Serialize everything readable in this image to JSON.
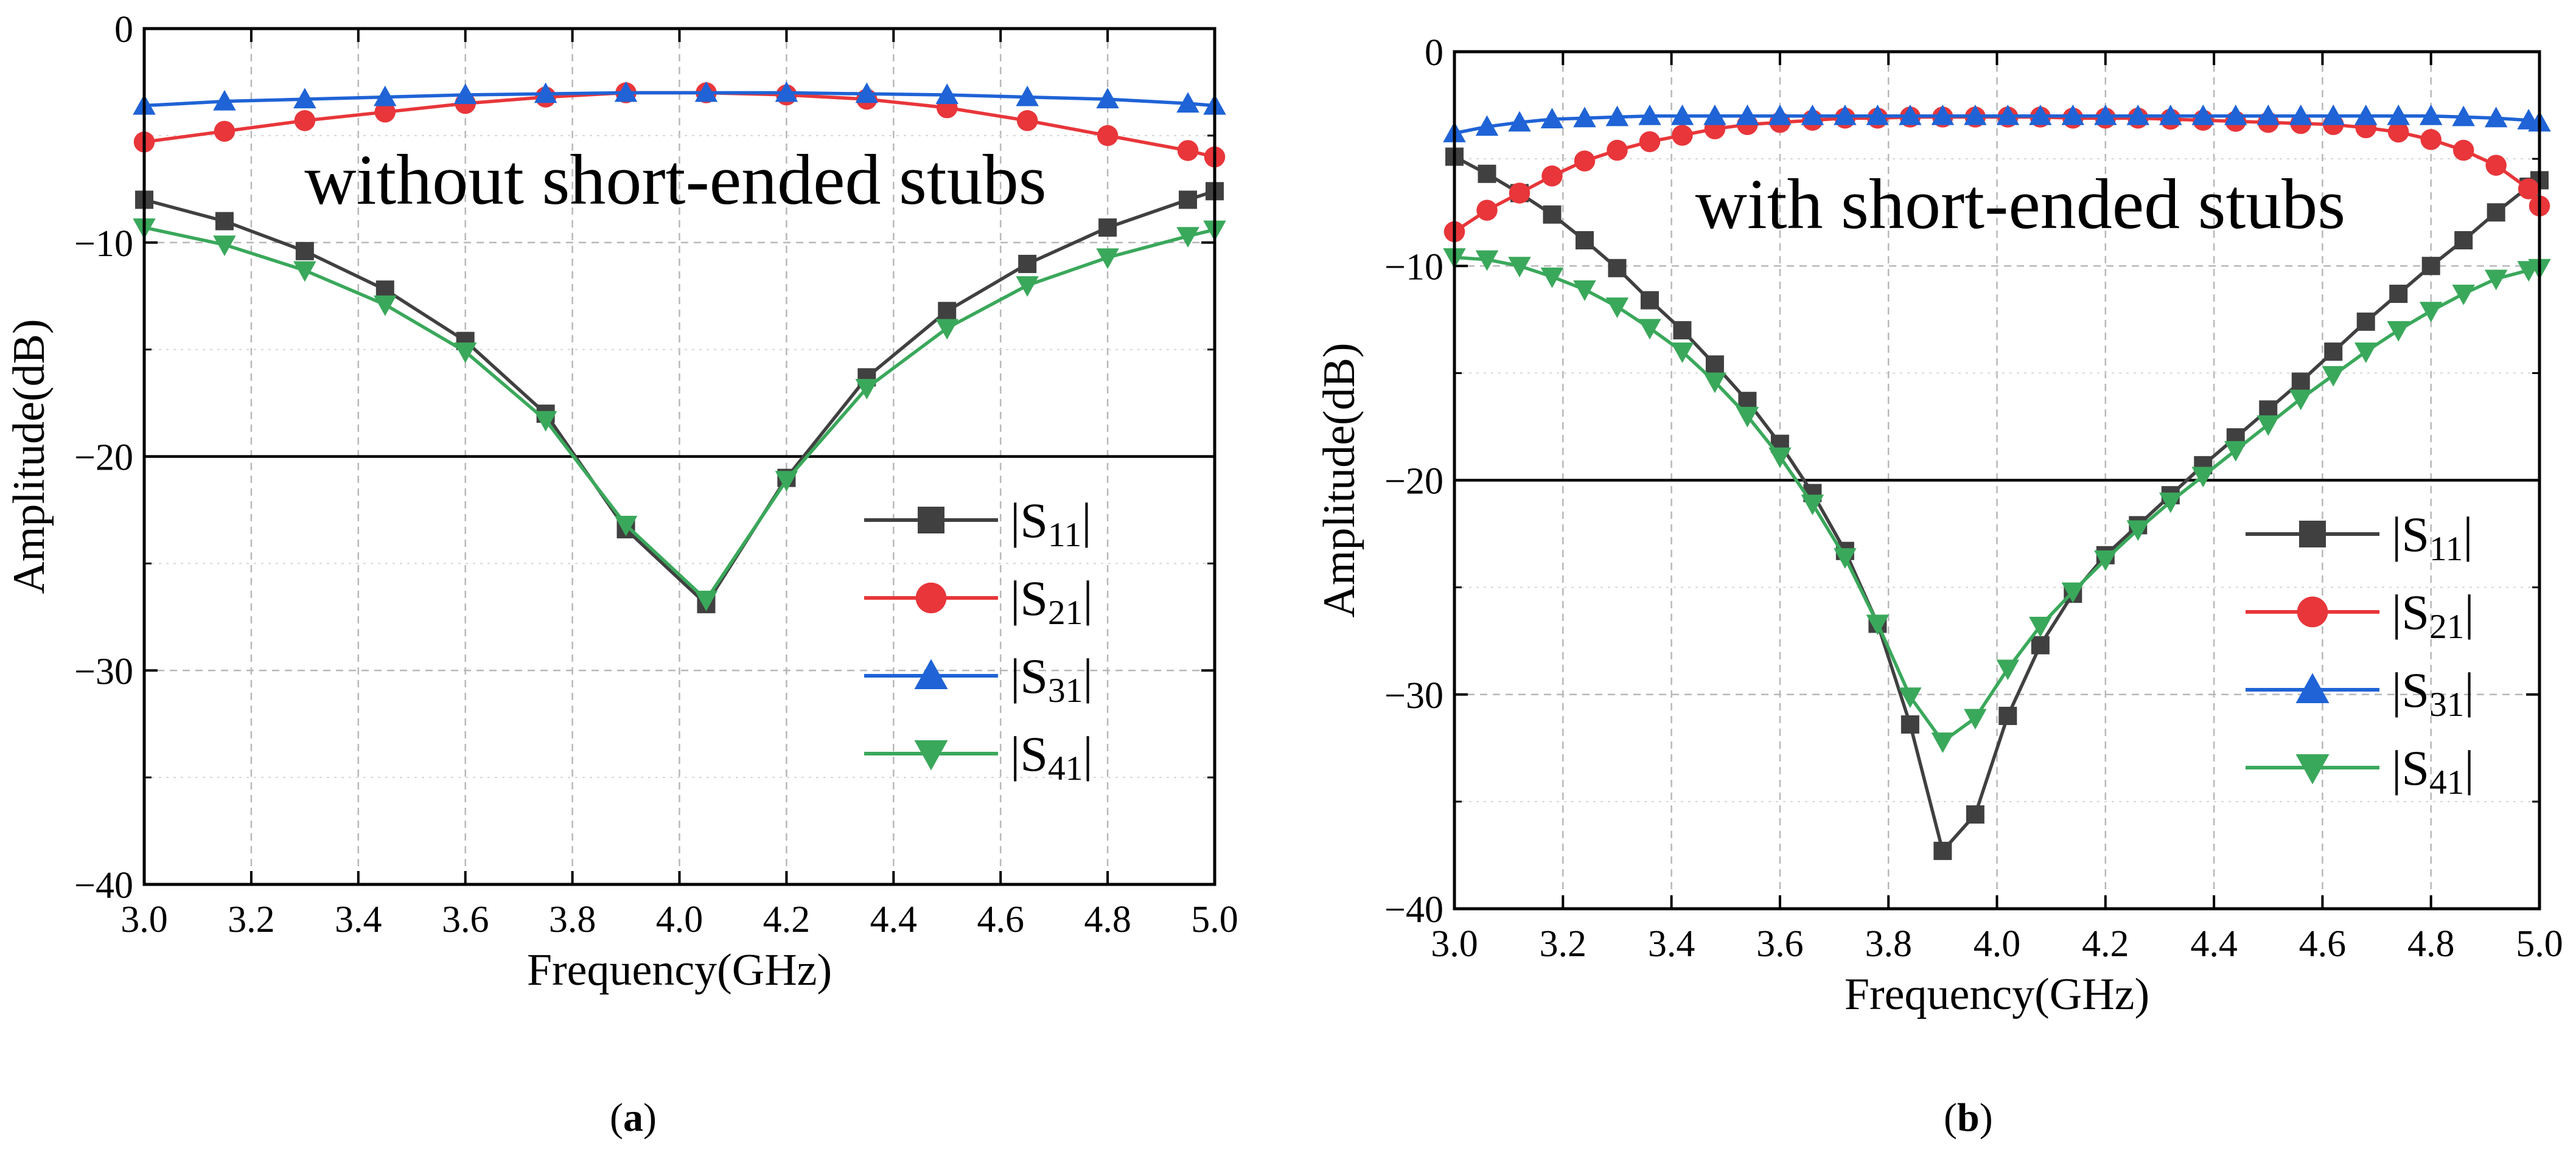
{
  "chart_data": [
    {
      "type": "line",
      "panel_label": "a",
      "annotation": "without short-ended stubs",
      "xlabel": "Frequency(GHz)",
      "ylabel": "Amplitude(dB)",
      "xlim": [
        3.0,
        5.0
      ],
      "ylim": [
        -40,
        0
      ],
      "xticks": [
        "3.0",
        "3.2",
        "3.4",
        "3.6",
        "3.8",
        "4.0",
        "4.2",
        "4.4",
        "4.6",
        "4.8",
        "5.0"
      ],
      "yticks": [
        "0",
        "−10",
        "−20",
        "−30",
        "−40"
      ],
      "reference_line": -20,
      "grid": true,
      "legend_position": "right",
      "series": [
        {
          "name": "|S11|",
          "color": "#404040",
          "marker": "square",
          "x": [
            3.0,
            3.15,
            3.3,
            3.45,
            3.6,
            3.75,
            3.9,
            4.05,
            4.2,
            4.35,
            4.5,
            4.65,
            4.8,
            4.95,
            5.0
          ],
          "y": [
            -8.0,
            -9.0,
            -10.4,
            -12.2,
            -14.6,
            -18.0,
            -23.4,
            -26.9,
            -21.0,
            -16.3,
            -13.2,
            -11.0,
            -9.3,
            -8.0,
            -7.6
          ]
        },
        {
          "name": "|S21|",
          "color": "#e8363a",
          "marker": "circle",
          "x": [
            3.0,
            3.15,
            3.3,
            3.45,
            3.6,
            3.75,
            3.9,
            4.05,
            4.2,
            4.35,
            4.5,
            4.65,
            4.8,
            4.95,
            5.0
          ],
          "y": [
            -5.3,
            -4.8,
            -4.3,
            -3.9,
            -3.5,
            -3.2,
            -3.0,
            -3.0,
            -3.1,
            -3.3,
            -3.7,
            -4.3,
            -5.0,
            -5.7,
            -6.0
          ]
        },
        {
          "name": "|S31|",
          "color": "#1f63d6",
          "marker": "triangle-up",
          "x": [
            3.0,
            3.15,
            3.3,
            3.45,
            3.6,
            3.75,
            3.9,
            4.05,
            4.2,
            4.35,
            4.5,
            4.65,
            4.8,
            4.95,
            5.0
          ],
          "y": [
            -3.6,
            -3.4,
            -3.3,
            -3.2,
            -3.1,
            -3.05,
            -3.0,
            -3.0,
            -3.0,
            -3.05,
            -3.1,
            -3.2,
            -3.3,
            -3.5,
            -3.6
          ]
        },
        {
          "name": "|S41|",
          "color": "#3aa85b",
          "marker": "triangle-down",
          "x": [
            3.0,
            3.15,
            3.3,
            3.45,
            3.6,
            3.75,
            3.9,
            4.05,
            4.2,
            4.35,
            4.5,
            4.65,
            4.8,
            4.95,
            5.0
          ],
          "y": [
            -9.3,
            -10.1,
            -11.3,
            -12.9,
            -15.1,
            -18.3,
            -23.2,
            -26.7,
            -21.1,
            -16.8,
            -14.0,
            -12.0,
            -10.7,
            -9.7,
            -9.4
          ]
        }
      ]
    },
    {
      "type": "line",
      "panel_label": "b",
      "annotation": "with short-ended stubs",
      "xlabel": "Frequency(GHz)",
      "ylabel": "Amplitude(dB)",
      "xlim": [
        3.0,
        5.0
      ],
      "ylim": [
        -40,
        0
      ],
      "xticks": [
        "3.0",
        "3.2",
        "3.4",
        "3.6",
        "3.8",
        "4.0",
        "4.2",
        "4.4",
        "4.6",
        "4.8",
        "5.0"
      ],
      "yticks": [
        "0",
        "−10",
        "−20",
        "−30",
        "−40"
      ],
      "reference_line": -20,
      "grid": true,
      "legend_position": "right",
      "series": [
        {
          "name": "|S11|",
          "color": "#404040",
          "marker": "square",
          "x": [
            3.0,
            3.06,
            3.12,
            3.18,
            3.24,
            3.3,
            3.36,
            3.42,
            3.48,
            3.54,
            3.6,
            3.66,
            3.72,
            3.78,
            3.84,
            3.9,
            3.96,
            4.02,
            4.08,
            4.14,
            4.2,
            4.26,
            4.32,
            4.38,
            4.44,
            4.5,
            4.56,
            4.62,
            4.68,
            4.74,
            4.8,
            4.86,
            4.92,
            4.98,
            5.0
          ],
          "y": [
            -4.9,
            -5.7,
            -6.6,
            -7.6,
            -8.8,
            -10.1,
            -11.6,
            -13.0,
            -14.6,
            -16.3,
            -18.3,
            -20.6,
            -23.3,
            -26.7,
            -31.4,
            -37.3,
            -35.6,
            -31.0,
            -27.7,
            -25.3,
            -23.5,
            -22.1,
            -20.7,
            -19.3,
            -18.0,
            -16.7,
            -15.4,
            -14.0,
            -12.6,
            -11.3,
            -10.0,
            -8.8,
            -7.5,
            -6.3,
            -6.0
          ]
        },
        {
          "name": "|S21|",
          "color": "#e8363a",
          "marker": "circle",
          "x": [
            3.0,
            3.06,
            3.12,
            3.18,
            3.24,
            3.3,
            3.36,
            3.42,
            3.48,
            3.54,
            3.6,
            3.66,
            3.72,
            3.78,
            3.84,
            3.9,
            3.96,
            4.02,
            4.08,
            4.14,
            4.2,
            4.26,
            4.32,
            4.38,
            4.44,
            4.5,
            4.56,
            4.62,
            4.68,
            4.74,
            4.8,
            4.86,
            4.92,
            4.98,
            5.0
          ],
          "y": [
            -8.4,
            -7.4,
            -6.6,
            -5.8,
            -5.1,
            -4.6,
            -4.2,
            -3.9,
            -3.6,
            -3.4,
            -3.3,
            -3.2,
            -3.1,
            -3.1,
            -3.05,
            -3.05,
            -3.05,
            -3.05,
            -3.05,
            -3.1,
            -3.1,
            -3.1,
            -3.15,
            -3.2,
            -3.25,
            -3.3,
            -3.35,
            -3.4,
            -3.55,
            -3.75,
            -4.1,
            -4.6,
            -5.3,
            -6.4,
            -7.2
          ]
        },
        {
          "name": "|S31|",
          "color": "#1f63d6",
          "marker": "triangle-up",
          "x": [
            3.0,
            3.06,
            3.12,
            3.18,
            3.24,
            3.3,
            3.36,
            3.42,
            3.48,
            3.54,
            3.6,
            3.66,
            3.72,
            3.78,
            3.84,
            3.9,
            3.96,
            4.02,
            4.08,
            4.14,
            4.2,
            4.26,
            4.32,
            4.38,
            4.44,
            4.5,
            4.56,
            4.62,
            4.68,
            4.74,
            4.8,
            4.86,
            4.92,
            4.98,
            5.0
          ],
          "y": [
            -3.8,
            -3.5,
            -3.3,
            -3.15,
            -3.1,
            -3.05,
            -3.0,
            -3.0,
            -3.0,
            -3.0,
            -3.0,
            -3.0,
            -3.0,
            -3.0,
            -3.0,
            -3.0,
            -3.0,
            -3.0,
            -3.0,
            -3.0,
            -3.0,
            -3.0,
            -3.0,
            -3.0,
            -3.0,
            -3.0,
            -3.0,
            -3.0,
            -3.0,
            -3.0,
            -3.0,
            -3.05,
            -3.1,
            -3.2,
            -3.3
          ]
        },
        {
          "name": "|S41|",
          "color": "#3aa85b",
          "marker": "triangle-down",
          "x": [
            3.0,
            3.06,
            3.12,
            3.18,
            3.24,
            3.3,
            3.36,
            3.42,
            3.48,
            3.54,
            3.6,
            3.66,
            3.72,
            3.78,
            3.84,
            3.9,
            3.96,
            4.02,
            4.08,
            4.14,
            4.2,
            4.26,
            4.32,
            4.38,
            4.44,
            4.5,
            4.56,
            4.62,
            4.68,
            4.74,
            4.8,
            4.86,
            4.92,
            4.98,
            5.0
          ],
          "y": [
            -9.6,
            -9.7,
            -10.0,
            -10.5,
            -11.1,
            -11.9,
            -12.9,
            -14.0,
            -15.4,
            -17.0,
            -18.9,
            -21.1,
            -23.6,
            -26.7,
            -30.1,
            -32.2,
            -31.1,
            -28.8,
            -26.8,
            -25.2,
            -23.7,
            -22.3,
            -21.0,
            -19.8,
            -18.6,
            -17.4,
            -16.2,
            -15.1,
            -14.0,
            -13.0,
            -12.1,
            -11.3,
            -10.6,
            -10.2,
            -10.1
          ]
        }
      ]
    }
  ]
}
